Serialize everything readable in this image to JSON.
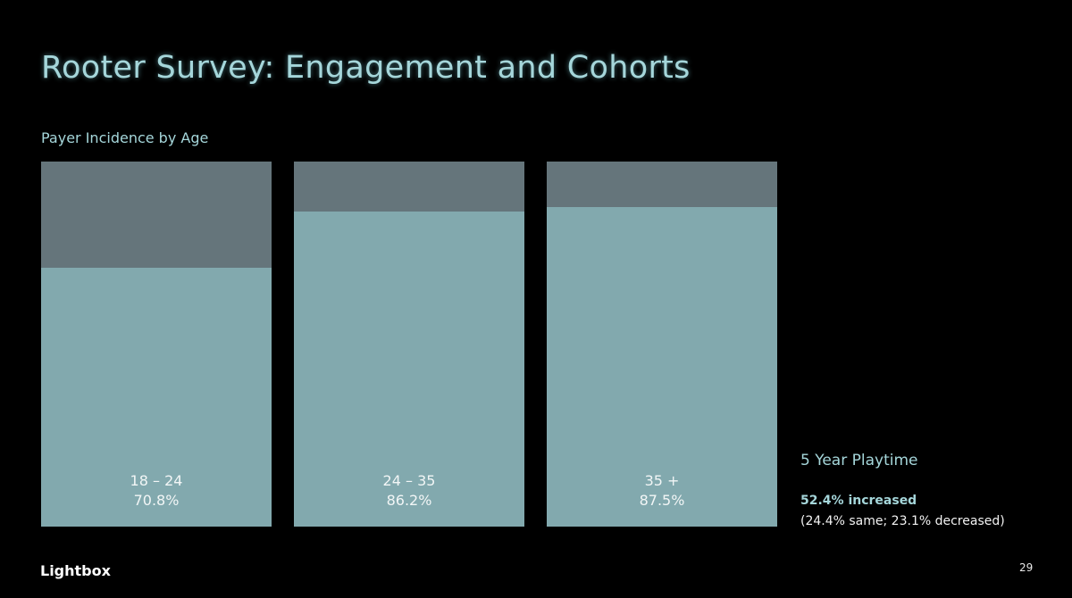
{
  "slide": {
    "title": "Rooter Survey: Engagement and Cohorts",
    "logo": "Lightbox",
    "page_number": "29"
  },
  "side_panel": {
    "title": "5 Year Playtime",
    "main": "52.4% increased",
    "sub": "(24.4% same; 23.1% decreased)"
  },
  "colors": {
    "background": "#000000",
    "bar_remainder": "#65757b",
    "bar_fill": "#82a9ae",
    "accent_text": "#a5d6da"
  },
  "chart_data": {
    "type": "bar",
    "title": "Payer Incidence by Age",
    "categories": [
      "18 – 24",
      "24 – 35",
      "35 +"
    ],
    "values": [
      70.8,
      86.2,
      87.5
    ],
    "value_labels": [
      "70.8%",
      "86.2%",
      "87.5%"
    ],
    "ylim": [
      0,
      100
    ],
    "xlabel": "",
    "ylabel": "",
    "stacked_remainder": true,
    "grid": false
  }
}
